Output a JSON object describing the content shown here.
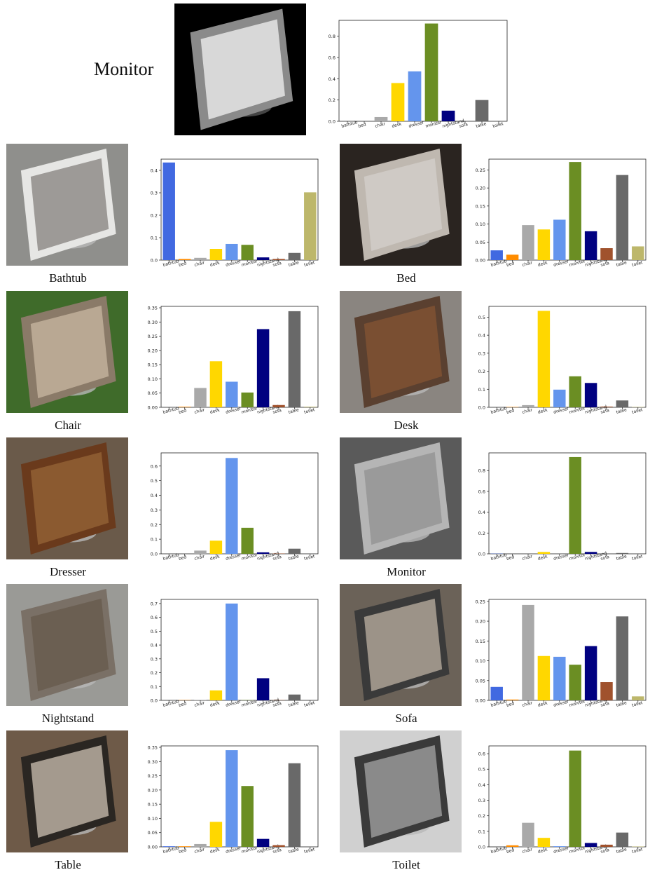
{
  "top": {
    "title": "Monitor",
    "image": {
      "bg": "#000000",
      "frame": "#8a8a8a",
      "screen": "#d8d8d8"
    },
    "chart_data": {
      "type": "bar",
      "categories": [
        "bathtub",
        "bed",
        "chair",
        "desk",
        "dresser",
        "monitor",
        "nightstand",
        "sofa",
        "table",
        "toilet"
      ],
      "values": [
        0.0,
        0.0,
        0.04,
        0.36,
        0.47,
        0.92,
        0.1,
        0.0,
        0.2,
        0.0
      ],
      "ylim": [
        0,
        0.95
      ],
      "yticks": [
        "0.0",
        "0.2",
        "0.4",
        "0.6",
        "0.8"
      ],
      "ytick_values": [
        0.0,
        0.2,
        0.4,
        0.6,
        0.8
      ]
    }
  },
  "colors": [
    "#4169e1",
    "#ff8c00",
    "#a9a9a9",
    "#ffd700",
    "#6495ed",
    "#6b8e23",
    "#000080",
    "#a0522d",
    "#696969",
    "#bdb76b"
  ],
  "panels": [
    {
      "label": "Bathtub",
      "image": {
        "bg": "#8f8f8c",
        "frame": "#e6e6e4",
        "screen": "#9d9a97"
      },
      "chart_data": {
        "type": "bar",
        "categories": [
          "bathtub",
          "bed",
          "chair",
          "desk",
          "dresser",
          "monitor",
          "nightstand",
          "sofa",
          "table",
          "toilet"
        ],
        "values": [
          0.435,
          0.005,
          0.01,
          0.05,
          0.072,
          0.068,
          0.012,
          0.005,
          0.032,
          0.302
        ],
        "ylim": [
          0,
          0.45
        ],
        "yticks": [
          "0.0",
          "0.1",
          "0.2",
          "0.3",
          "0.4"
        ],
        "ytick_values": [
          0.0,
          0.1,
          0.2,
          0.3,
          0.4
        ]
      }
    },
    {
      "label": "Bed",
      "image": {
        "bg": "#2a2420",
        "frame": "#bfb8b0",
        "screen": "#cfcac5"
      },
      "chart_data": {
        "type": "bar",
        "categories": [
          "bathtub",
          "bed",
          "chair",
          "desk",
          "dresser",
          "monitor",
          "nightstand",
          "sofa",
          "table",
          "toilet"
        ],
        "values": [
          0.027,
          0.015,
          0.097,
          0.085,
          0.112,
          0.272,
          0.08,
          0.033,
          0.236,
          0.038
        ],
        "ylim": [
          0,
          0.28
        ],
        "yticks": [
          "0.00",
          "0.05",
          "0.10",
          "0.15",
          "0.20",
          "0.25"
        ],
        "ytick_values": [
          0.0,
          0.05,
          0.1,
          0.15,
          0.2,
          0.25
        ]
      }
    },
    {
      "label": "Chair",
      "image": {
        "bg": "#3f6b2a",
        "frame": "#8a7a68",
        "screen": "#b9a893"
      },
      "chart_data": {
        "type": "bar",
        "categories": [
          "bathtub",
          "bed",
          "chair",
          "desk",
          "dresser",
          "monitor",
          "nightstand",
          "sofa",
          "table",
          "toilet"
        ],
        "values": [
          0.0,
          0.002,
          0.068,
          0.162,
          0.09,
          0.052,
          0.275,
          0.008,
          0.338,
          0.002
        ],
        "ylim": [
          0,
          0.355
        ],
        "yticks": [
          "0.00",
          "0.05",
          "0.10",
          "0.15",
          "0.20",
          "0.25",
          "0.30",
          "0.35"
        ],
        "ytick_values": [
          0.0,
          0.05,
          0.1,
          0.15,
          0.2,
          0.25,
          0.3,
          0.35
        ]
      }
    },
    {
      "label": "Desk",
      "image": {
        "bg": "#8a8580",
        "frame": "#5a4030",
        "screen": "#7a4f32"
      },
      "chart_data": {
        "type": "bar",
        "categories": [
          "bathtub",
          "bed",
          "chair",
          "desk",
          "dresser",
          "monitor",
          "nightstand",
          "sofa",
          "table",
          "toilet"
        ],
        "values": [
          0.0,
          0.002,
          0.012,
          0.535,
          0.098,
          0.172,
          0.135,
          0.004,
          0.038,
          0.002
        ],
        "ylim": [
          0,
          0.56
        ],
        "yticks": [
          "0.0",
          "0.1",
          "0.2",
          "0.3",
          "0.4",
          "0.5"
        ],
        "ytick_values": [
          0.0,
          0.1,
          0.2,
          0.3,
          0.4,
          0.5
        ]
      }
    },
    {
      "label": "Dresser",
      "image": {
        "bg": "#6a5a4a",
        "frame": "#6a3a1c",
        "screen": "#8b5a30"
      },
      "chart_data": {
        "type": "bar",
        "categories": [
          "bathtub",
          "bed",
          "chair",
          "desk",
          "dresser",
          "monitor",
          "nightstand",
          "sofa",
          "table",
          "toilet"
        ],
        "values": [
          0.0,
          0.0,
          0.022,
          0.09,
          0.655,
          0.178,
          0.01,
          0.002,
          0.035,
          0.0
        ],
        "ylim": [
          0,
          0.69
        ],
        "yticks": [
          "0.0",
          "0.1",
          "0.2",
          "0.3",
          "0.4",
          "0.5",
          "0.6"
        ],
        "ytick_values": [
          0.0,
          0.1,
          0.2,
          0.3,
          0.4,
          0.5,
          0.6
        ]
      }
    },
    {
      "label": "Monitor",
      "image": {
        "bg": "#5a5a5a",
        "frame": "#b5b5b5",
        "screen": "#9a9a9a"
      },
      "chart_data": {
        "type": "bar",
        "categories": [
          "bathtub",
          "bed",
          "chair",
          "desk",
          "dresser",
          "monitor",
          "nightstand",
          "sofa",
          "table",
          "toilet"
        ],
        "values": [
          0.002,
          0.0,
          0.0,
          0.018,
          0.0,
          0.93,
          0.018,
          0.0,
          0.008,
          0.0
        ],
        "ylim": [
          0,
          0.97
        ],
        "yticks": [
          "0.0",
          "0.2",
          "0.4",
          "0.6",
          "0.8"
        ],
        "ytick_values": [
          0.0,
          0.2,
          0.4,
          0.6,
          0.8
        ]
      }
    },
    {
      "label": "Nightstand",
      "image": {
        "bg": "#9a9a96",
        "frame": "#7a7066",
        "screen": "#6b5f52"
      },
      "chart_data": {
        "type": "bar",
        "categories": [
          "bathtub",
          "bed",
          "chair",
          "desk",
          "dresser",
          "monitor",
          "nightstand",
          "sofa",
          "table",
          "toilet"
        ],
        "values": [
          0.0,
          0.002,
          0.002,
          0.072,
          0.7,
          0.002,
          0.16,
          0.002,
          0.042,
          0.0
        ],
        "ylim": [
          0,
          0.73
        ],
        "yticks": [
          "0.0",
          "0.1",
          "0.2",
          "0.3",
          "0.4",
          "0.5",
          "0.6",
          "0.7"
        ],
        "ytick_values": [
          0.0,
          0.1,
          0.2,
          0.3,
          0.4,
          0.5,
          0.6,
          0.7
        ]
      }
    },
    {
      "label": "Sofa",
      "image": {
        "bg": "#6b6258",
        "frame": "#3a3a3a",
        "screen": "#9c9388"
      },
      "chart_data": {
        "type": "bar",
        "categories": [
          "bathtub",
          "bed",
          "chair",
          "desk",
          "dresser",
          "monitor",
          "nightstand",
          "sofa",
          "table",
          "toilet"
        ],
        "values": [
          0.034,
          0.002,
          0.241,
          0.112,
          0.11,
          0.09,
          0.137,
          0.046,
          0.212,
          0.01
        ],
        "ylim": [
          0,
          0.255
        ],
        "yticks": [
          "0.00",
          "0.05",
          "0.10",
          "0.15",
          "0.20",
          "0.25"
        ],
        "ytick_values": [
          0.0,
          0.05,
          0.1,
          0.15,
          0.2,
          0.25
        ]
      }
    },
    {
      "label": "Table",
      "image": {
        "bg": "#6e5a48",
        "frame": "#2a2622",
        "screen": "#a49a8e"
      },
      "chart_data": {
        "type": "bar",
        "categories": [
          "bathtub",
          "bed",
          "chair",
          "desk",
          "dresser",
          "monitor",
          "nightstand",
          "sofa",
          "table",
          "toilet"
        ],
        "values": [
          0.002,
          0.002,
          0.01,
          0.088,
          0.34,
          0.214,
          0.028,
          0.006,
          0.294,
          0.0
        ],
        "ylim": [
          0,
          0.355
        ],
        "yticks": [
          "0.00",
          "0.05",
          "0.10",
          "0.15",
          "0.20",
          "0.25",
          "0.30",
          "0.35"
        ],
        "ytick_values": [
          0.0,
          0.05,
          0.1,
          0.15,
          0.2,
          0.25,
          0.3,
          0.35
        ]
      }
    },
    {
      "label": "Toilet",
      "image": {
        "bg": "#d0d0d0",
        "frame": "#3a3a3a",
        "screen": "#8a8a8a"
      },
      "chart_data": {
        "type": "bar",
        "categories": [
          "bathtub",
          "bed",
          "chair",
          "desk",
          "dresser",
          "monitor",
          "nightstand",
          "sofa",
          "table",
          "toilet"
        ],
        "values": [
          0.0,
          0.01,
          0.155,
          0.058,
          0.004,
          0.62,
          0.025,
          0.014,
          0.092,
          0.002
        ],
        "ylim": [
          0,
          0.65
        ],
        "yticks": [
          "0.0",
          "0.1",
          "0.2",
          "0.3",
          "0.4",
          "0.5",
          "0.6"
        ],
        "ytick_values": [
          0.0,
          0.1,
          0.2,
          0.3,
          0.4,
          0.5,
          0.6
        ]
      }
    }
  ]
}
